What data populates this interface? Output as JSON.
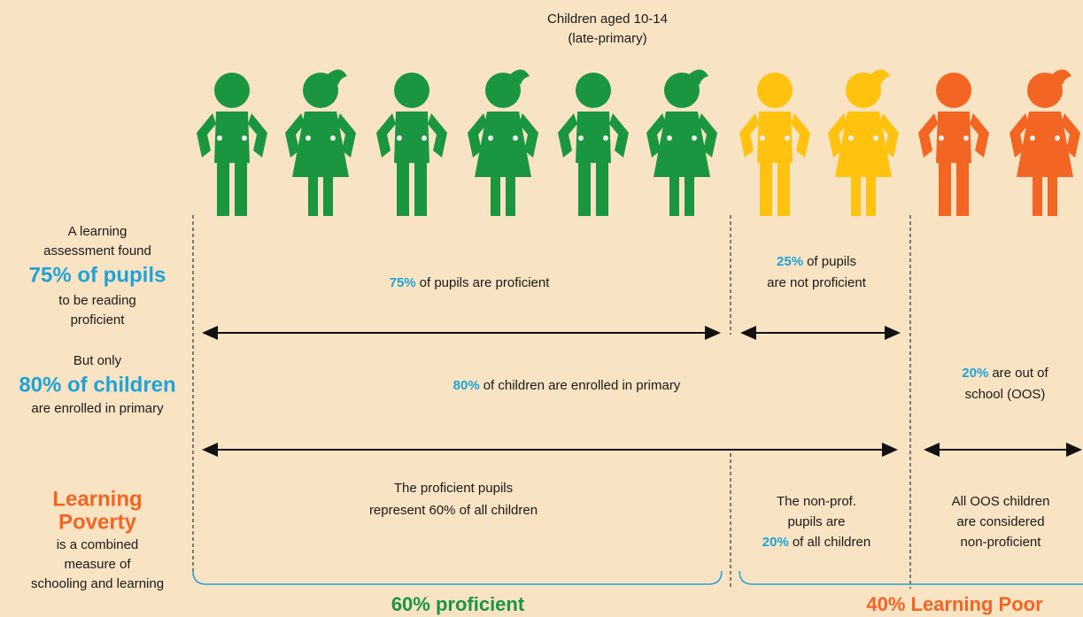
{
  "header": {
    "line1": "Children aged 10-14",
    "line2": "(late-primary)"
  },
  "left": {
    "assessment": {
      "lines_before": [
        "A learning",
        "assessment found"
      ],
      "highlight": "75% of pupils",
      "lines_after": [
        "to be reading",
        "proficient"
      ]
    },
    "enrollment": {
      "line_before": "But only",
      "highlight": "80% of children",
      "line_after": "are enrolled in primary"
    },
    "poverty": {
      "highlight": [
        "Learning",
        "Poverty"
      ],
      "lines_after": [
        "is a combined",
        "measure of",
        "schooling and learning"
      ]
    }
  },
  "row1": {
    "proficient": {
      "highlight": "75%",
      "text": "of pupils are proficient"
    },
    "not_proficient": {
      "highlight": "25%",
      "text": "of pupils",
      "line2": "are not proficient"
    }
  },
  "row2": {
    "enrolled": {
      "highlight": "80%",
      "text": "of children are enrolled in primary"
    },
    "oos": {
      "highlight": "20%",
      "text": "are out of",
      "line2": "school (OOS)"
    }
  },
  "row3": {
    "proficient": {
      "lines": [
        "The proficient pupils",
        "represent 60% of all children"
      ]
    },
    "non_proficient": {
      "lines": [
        "The non-prof.",
        "pupils are"
      ],
      "highlight": "20%",
      "text": "of all children"
    },
    "oos": {
      "lines": [
        "All OOS children",
        "are considered",
        "non-proficient"
      ]
    }
  },
  "footer": {
    "proficient": "60% proficient",
    "poor": "40% Learning Poor"
  }
}
